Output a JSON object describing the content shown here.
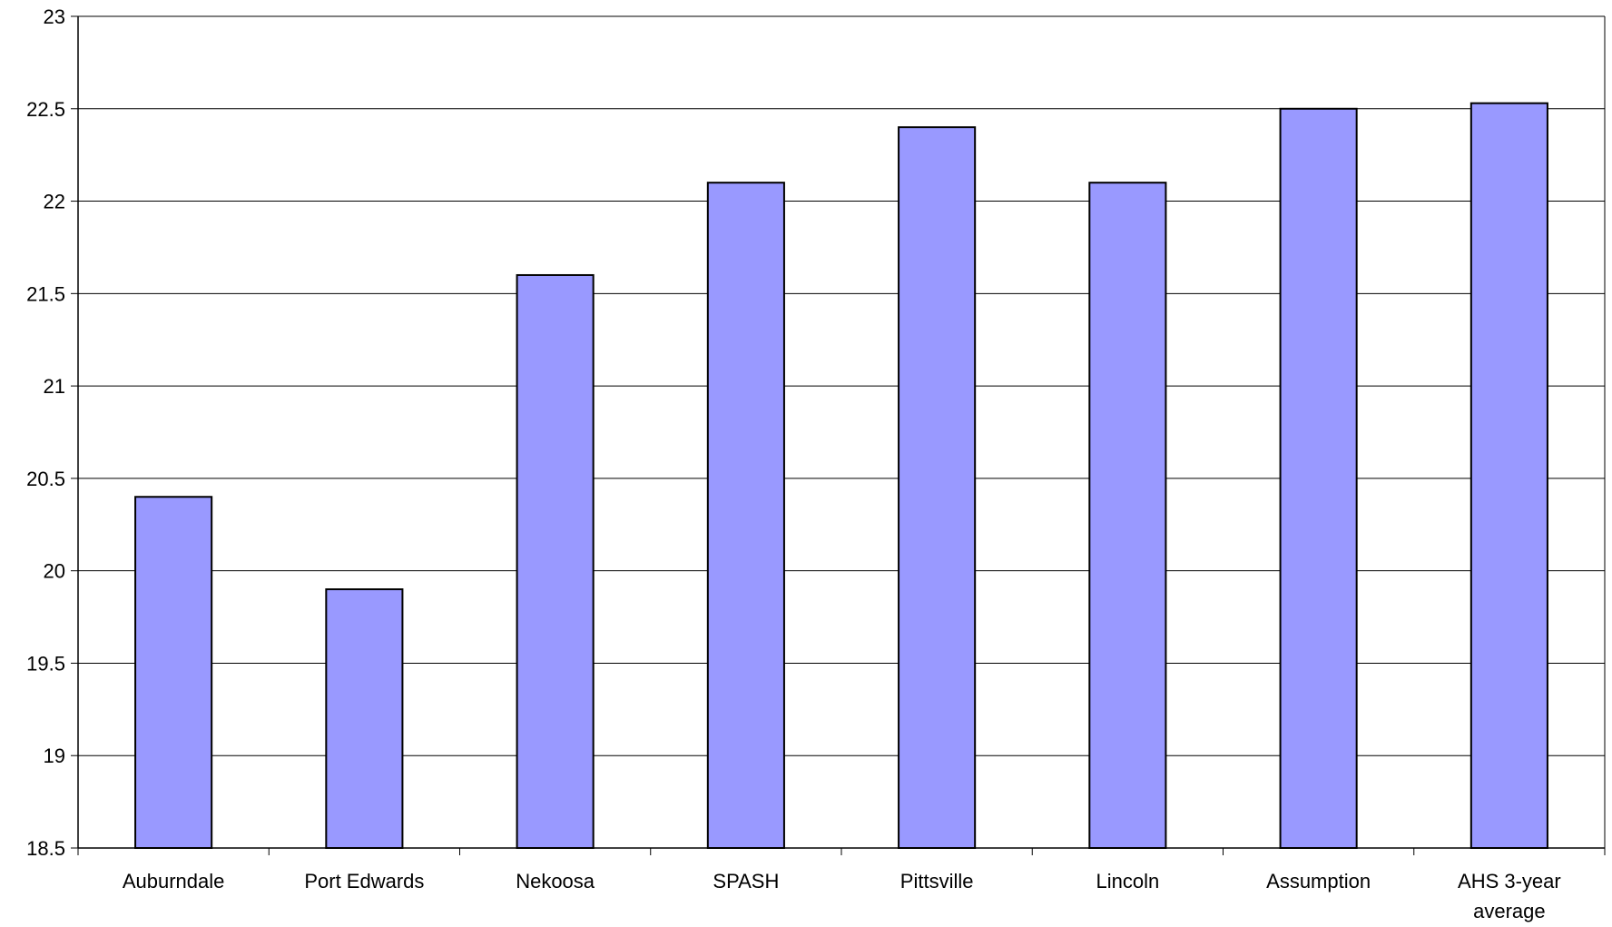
{
  "chart_data": {
    "type": "bar",
    "categories": [
      "Auburndale",
      "Port Edwards",
      "Nekoosa",
      "SPASH",
      "Pittsville",
      "Lincoln",
      "Assumption",
      "AHS 3-year average"
    ],
    "category_label_lines": [
      [
        "Auburndale"
      ],
      [
        "Port Edwards"
      ],
      [
        "Nekoosa"
      ],
      [
        "SPASH"
      ],
      [
        "Pittsville"
      ],
      [
        "Lincoln"
      ],
      [
        "Assumption"
      ],
      [
        "AHS 3-year",
        "average"
      ]
    ],
    "values": [
      20.4,
      19.9,
      21.6,
      22.1,
      22.4,
      22.1,
      22.5,
      22.53
    ],
    "title": "",
    "xlabel": "",
    "ylabel": "",
    "ylim": [
      18.5,
      23
    ],
    "yticks": [
      18.5,
      19,
      19.5,
      20,
      20.5,
      21,
      21.5,
      22,
      22.5,
      23
    ],
    "grid": true,
    "legend": "none",
    "colors": {
      "bar_fill": "#9999ff",
      "bar_stroke": "#000000",
      "grid": "#000000",
      "axis": "#000000"
    }
  }
}
